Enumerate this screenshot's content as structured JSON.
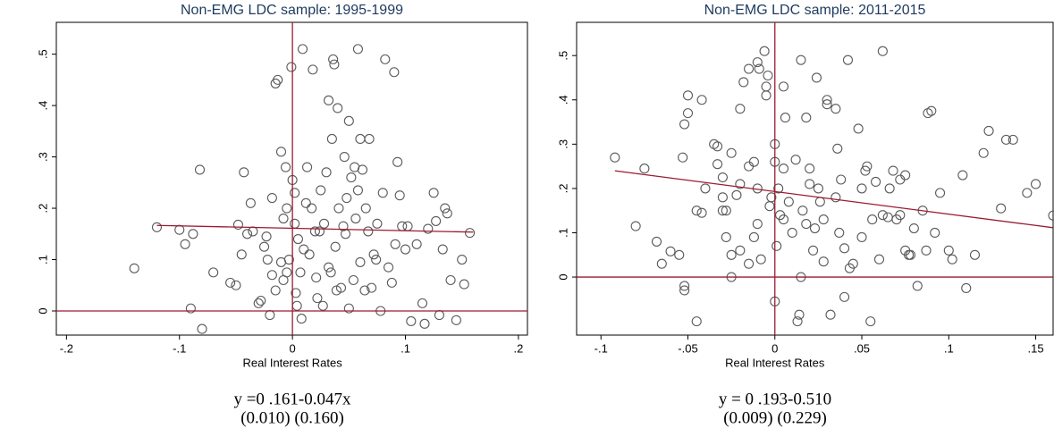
{
  "chart_data": [
    {
      "type": "scatter",
      "title": "Non-EMG LDC sample: 1995-1999",
      "x_label": "Real Interest Rates",
      "equation": "y =0 .161-0.047x",
      "std_errors": "(0.010) (0.160)",
      "marker_color": "#5a5a5a",
      "line_color": "#9b1b30",
      "xlim": [
        -0.209,
        0.208
      ],
      "ylim": [
        -0.047,
        0.562
      ],
      "xticks": [
        {
          "value": -0.2,
          "label": "-.2"
        },
        {
          "value": -0.1,
          "label": "-.1"
        },
        0,
        {
          "value": 0.1,
          "label": ".1"
        },
        {
          "value": 0.2,
          "label": ".2"
        }
      ],
      "yticks": [
        0,
        {
          "value": 0.1,
          "label": ".1"
        },
        {
          "value": 0.2,
          "label": ".2"
        },
        {
          "value": 0.3,
          "label": ".3"
        },
        {
          "value": 0.4,
          "label": ".4"
        },
        {
          "value": 0.5,
          "label": ".5"
        }
      ],
      "ref_x": 0,
      "ref_y": 0,
      "fit": {
        "intercept": 0.161,
        "slope": -0.047,
        "x_range": [
          -0.12,
          0.16
        ]
      },
      "x": [
        -0.14,
        -0.12,
        -0.1,
        -0.095,
        -0.09,
        -0.088,
        -0.082,
        -0.08,
        -0.07,
        -0.055,
        -0.05,
        -0.048,
        -0.045,
        -0.043,
        -0.04,
        -0.037,
        -0.035,
        -0.03,
        -0.028,
        -0.025,
        -0.023,
        -0.022,
        -0.02,
        -0.018,
        -0.015,
        -0.018,
        -0.01,
        -0.008,
        -0.006,
        -0.005,
        -0.015,
        -0.013,
        -0.01,
        -0.008,
        -0.005,
        -0.003,
        -0.001,
        0,
        0.002,
        0.002,
        0.003,
        0.004,
        0.005,
        0.007,
        0.008,
        0.009,
        0.01,
        0.012,
        0.013,
        0.015,
        0.017,
        0.018,
        0.02,
        0.021,
        0.022,
        0.024,
        0.025,
        0.027,
        0.028,
        0.03,
        0.032,
        0.032,
        0.034,
        0.035,
        0.036,
        0.037,
        0.038,
        0.039,
        0.04,
        0.041,
        0.043,
        0.045,
        0.046,
        0.047,
        0.048,
        0.05,
        0.05,
        0.052,
        0.054,
        0.055,
        0.056,
        0.058,
        0.058,
        0.06,
        0.06,
        0.062,
        0.064,
        0.065,
        0.067,
        0.068,
        0.07,
        0.072,
        0.074,
        0.075,
        0.078,
        0.08,
        0.082,
        0.085,
        0.088,
        0.09,
        0.091,
        0.093,
        0.095,
        0.097,
        0.1,
        0.102,
        0.105,
        0.11,
        0.115,
        0.117,
        0.12,
        0.125,
        0.127,
        0.13,
        0.133,
        0.135,
        0.137,
        0.14,
        0.145,
        0.15,
        0.152,
        0.157
      ],
      "values": [
        0.083,
        0.163,
        0.158,
        0.13,
        0.005,
        0.15,
        0.275,
        -0.035,
        0.075,
        0.055,
        0.05,
        0.168,
        0.11,
        0.27,
        0.15,
        0.21,
        0.155,
        0.015,
        0.02,
        0.125,
        0.145,
        0.1,
        -0.008,
        0.22,
        0.04,
        0.07,
        0.31,
        0.18,
        0.28,
        0.2,
        0.443,
        0.45,
        0.095,
        0.06,
        0.075,
        0.1,
        0.475,
        0.255,
        0.23,
        0.17,
        0.035,
        0.01,
        0.14,
        0.075,
        -0.015,
        0.51,
        0.12,
        0.21,
        0.28,
        0.11,
        0.2,
        0.47,
        0.155,
        0.065,
        0.025,
        0.155,
        0.235,
        0.01,
        0.17,
        0.27,
        0.085,
        0.41,
        0.075,
        0.335,
        0.49,
        0.48,
        0.125,
        0.04,
        0.395,
        0.2,
        0.045,
        0.165,
        0.3,
        0.15,
        0.22,
        0.37,
        0.005,
        0.26,
        0.06,
        0.28,
        0.18,
        0.235,
        0.51,
        0.335,
        0.095,
        0.275,
        0.04,
        0.2,
        0.155,
        0.335,
        0.045,
        0.11,
        0.1,
        0.17,
        0.0,
        0.23,
        0.49,
        0.085,
        0.055,
        0.465,
        0.13,
        0.29,
        0.225,
        0.165,
        0.12,
        0.165,
        -0.02,
        0.13,
        0.015,
        -0.025,
        0.16,
        0.23,
        0.175,
        -0.008,
        0.12,
        0.2,
        0.19,
        0.06,
        -0.018,
        0.1,
        0.052,
        0.152
      ]
    },
    {
      "type": "scatter",
      "title": "Non-EMG LDC sample: 2011-2015",
      "x_label": "Real Interest Rates",
      "equation": "y = 0 .193-0.510",
      "std_errors": "(0.009) (0.229)",
      "marker_color": "#5a5a5a",
      "line_color": "#9b1b30",
      "xlim": [
        -0.114,
        0.16
      ],
      "ylim": [
        -0.131,
        0.575
      ],
      "xticks": [
        {
          "value": -0.1,
          "label": "-.1"
        },
        {
          "value": -0.05,
          "label": "-.05"
        },
        0,
        {
          "value": 0.05,
          "label": ".05"
        },
        {
          "value": 0.1,
          "label": ".1"
        },
        {
          "value": 0.15,
          "label": ".15"
        }
      ],
      "yticks": [
        0,
        {
          "value": 0.1,
          "label": ".1"
        },
        {
          "value": 0.2,
          "label": ".2"
        },
        {
          "value": 0.3,
          "label": ".3"
        },
        {
          "value": 0.4,
          "label": ".4"
        },
        {
          "value": 0.5,
          "label": ".5"
        }
      ],
      "ref_x": 0,
      "ref_y": 0,
      "fit": {
        "intercept": 0.193,
        "slope": -0.51,
        "x_range": [
          -0.092,
          0.16
        ]
      },
      "x": [
        -0.092,
        -0.08,
        -0.075,
        -0.068,
        -0.065,
        -0.06,
        -0.053,
        -0.05,
        -0.05,
        -0.052,
        -0.055,
        -0.052,
        -0.052,
        -0.045,
        -0.042,
        -0.035,
        -0.033,
        -0.033,
        -0.03,
        -0.028,
        -0.025,
        -0.025,
        -0.02,
        -0.018,
        -0.015,
        -0.015,
        -0.012,
        -0.01,
        -0.01,
        -0.008,
        -0.005,
        -0.005,
        -0.003,
        0.0,
        -0.002,
        0.0,
        0.001,
        0.002,
        0.003,
        0.005,
        0.005,
        -0.004,
        -0.009,
        -0.02,
        -0.025,
        -0.03,
        -0.01,
        -0.012,
        -0.015,
        -0.02,
        -0.022,
        -0.028,
        -0.04,
        -0.042,
        -0.045,
        -0.03,
        -0.006,
        0.0,
        0.005,
        0.006,
        0.008,
        0.01,
        0.012,
        0.013,
        0.014,
        0.015,
        0.015,
        0.016,
        0.018,
        0.018,
        0.02,
        0.02,
        0.022,
        0.023,
        0.024,
        0.025,
        0.026,
        0.028,
        0.028,
        0.03,
        0.03,
        0.032,
        0.035,
        0.035,
        0.036,
        0.037,
        0.038,
        0.04,
        0.04,
        0.042,
        0.043,
        0.045,
        0.048,
        0.05,
        0.05,
        0.052,
        0.053,
        0.055,
        0.056,
        0.058,
        0.06,
        0.062,
        0.062,
        0.065,
        0.066,
        0.068,
        0.07,
        0.072,
        0.072,
        0.075,
        0.075,
        0.077,
        0.078,
        0.08,
        0.082,
        0.085,
        0.087,
        0.088,
        0.09,
        0.092,
        0.095,
        0.1,
        0.102,
        0.108,
        0.11,
        0.115,
        0.12,
        0.123,
        0.13,
        0.133,
        0.137,
        0.145,
        0.15,
        0.16
      ],
      "values": [
        0.27,
        0.115,
        0.245,
        0.08,
        0.03,
        0.058,
        0.27,
        0.41,
        0.37,
        0.345,
        0.05,
        -0.02,
        -0.03,
        -0.1,
        0.4,
        0.3,
        0.295,
        0.255,
        0.15,
        0.15,
        0.0,
        0.05,
        0.21,
        0.44,
        0.47,
        0.25,
        0.26,
        0.485,
        0.2,
        0.04,
        0.43,
        0.41,
        0.16,
        0.3,
        0.18,
        0.26,
        0.07,
        0.2,
        0.14,
        0.245,
        0.13,
        0.455,
        0.47,
        0.38,
        0.28,
        0.225,
        0.12,
        0.09,
        0.03,
        0.06,
        0.185,
        0.09,
        0.2,
        0.145,
        0.15,
        0.18,
        0.51,
        -0.055,
        0.43,
        0.36,
        0.17,
        0.1,
        0.265,
        -0.1,
        -0.085,
        0.49,
        0.0,
        0.15,
        0.36,
        0.12,
        0.245,
        0.21,
        0.06,
        0.11,
        0.45,
        0.2,
        0.17,
        0.035,
        0.13,
        0.39,
        0.4,
        -0.085,
        0.38,
        0.18,
        0.29,
        0.1,
        0.22,
        0.065,
        -0.045,
        0.49,
        0.02,
        0.03,
        0.335,
        0.09,
        0.2,
        0.24,
        0.25,
        -0.1,
        0.13,
        0.215,
        0.04,
        0.14,
        0.51,
        0.135,
        0.2,
        0.24,
        0.13,
        0.14,
        0.22,
        0.23,
        0.06,
        0.05,
        0.05,
        0.11,
        -0.02,
        0.15,
        0.06,
        0.37,
        0.375,
        0.1,
        0.19,
        0.06,
        0.04,
        0.23,
        -0.025,
        0.05,
        0.28,
        0.33,
        0.155,
        0.31,
        0.31,
        0.19,
        0.21,
        0.139
      ]
    }
  ]
}
